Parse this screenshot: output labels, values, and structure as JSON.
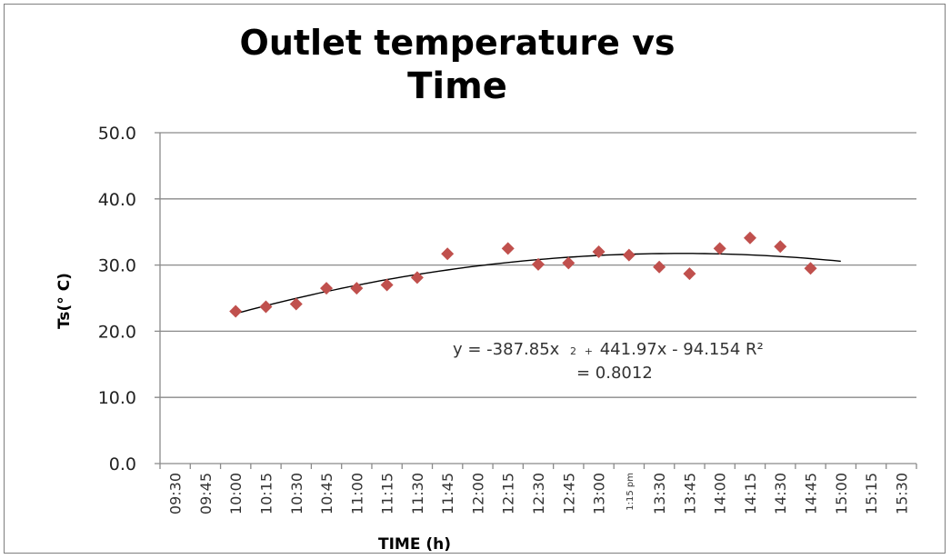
{
  "chart_data": {
    "type": "scatter",
    "title_line1": "Outlet temperature vs",
    "title_line2": "Time",
    "xlabel": "TIME (h)",
    "ylabel": "Ts(° C)",
    "ylim": [
      0,
      50
    ],
    "yticks": [
      "0.0",
      "10.0",
      "20.0",
      "30.0",
      "40.0",
      "50.0"
    ],
    "xticks": [
      "09:30",
      "09:45",
      "10:00",
      "10:15",
      "10:30",
      "10:45",
      "11:00",
      "11:15",
      "11:30",
      "11:45",
      "12:00",
      "12:15",
      "12:30",
      "12:45",
      "13:00",
      "1:15 pm",
      "13:30",
      "13:45",
      "14:00",
      "14:15",
      "14:30",
      "14:45",
      "15:00",
      "15:15",
      "15:30"
    ],
    "grid": true,
    "legend": "none",
    "marker_color": "#c0504d",
    "trend_color": "#000000",
    "series": [
      {
        "x": [
          "10:00",
          "10:15",
          "10:30",
          "10:45",
          "11:00",
          "11:15",
          "11:30",
          "11:45",
          "12:15",
          "12:30",
          "12:45",
          "13:00",
          "1:15 pm",
          "13:30",
          "13:45",
          "14:00",
          "14:15",
          "14:30",
          "14:45"
        ],
        "values": [
          23.0,
          23.7,
          24.1,
          26.5,
          26.5,
          27.0,
          28.1,
          31.7,
          32.5,
          30.1,
          30.3,
          32.0,
          31.5,
          29.7,
          28.7,
          32.5,
          34.1,
          32.8,
          29.5
        ]
      }
    ],
    "trendline": {
      "x_start": "10:00",
      "x_end": "15:00",
      "equation_line1_a": "y = -387.85x",
      "equation_line1_sup": "2",
      "equation_line1_plus": "+",
      "equation_line1_b": "441.97x - 94.154 R²",
      "equation_line2": "= 0.8012"
    }
  }
}
